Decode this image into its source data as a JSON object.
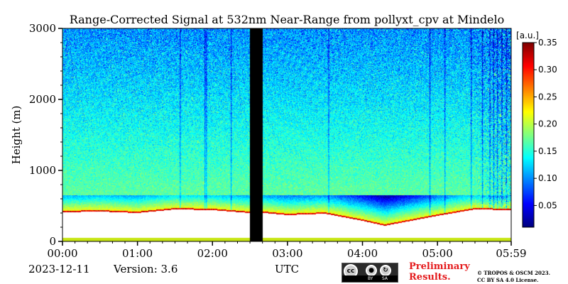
{
  "chart_data": {
    "type": "heatmap",
    "title": "Range-Corrected Signal at 532nm Near-Range from pollyxt_cpv at Mindelo",
    "xlabel": "UTC",
    "ylabel": "Height (m)",
    "x_ticks": [
      "00:00",
      "01:00",
      "02:00",
      "03:00",
      "04:00",
      "05:00",
      "05:59"
    ],
    "x_tick_hours": [
      0,
      1,
      2,
      3,
      4,
      5,
      5.983
    ],
    "xlim_hours": [
      0,
      5.983
    ],
    "y_ticks": [
      0,
      1000,
      2000,
      3000
    ],
    "ylim": [
      0,
      3000
    ],
    "colorbar": {
      "label": "[a.u.]",
      "range": [
        0.01,
        0.35
      ],
      "ticks": [
        "0.05",
        "0.10",
        "0.15",
        "0.20",
        "0.25",
        "0.30",
        "0.35"
      ],
      "tick_values": [
        0.05,
        0.1,
        0.15,
        0.2,
        0.25,
        0.3,
        0.35
      ],
      "colormap": "jet"
    },
    "data_gap_hours": [
      2.5,
      2.67
    ],
    "overlap_base_height_m": {
      "hours": [
        0,
        0.5,
        1.0,
        1.5,
        2.0,
        2.5,
        2.7,
        3.0,
        3.5,
        4.0,
        4.3,
        4.6,
        5.0,
        5.5,
        5.983
      ],
      "height_m": [
        430,
        440,
        420,
        470,
        460,
        420,
        420,
        390,
        410,
        310,
        240,
        300,
        380,
        470,
        460
      ]
    },
    "aerosol_layer_top_m": 650
  },
  "footer": {
    "date": "2023-12-11",
    "version": "Version: 3.6",
    "utc": "UTC",
    "preliminary": [
      "Preliminary",
      "Results."
    ],
    "copyright": [
      "© TROPOS & OSCM 2023.",
      "CC BY SA 4.0 License."
    ],
    "license_badge": {
      "label_by": "BY",
      "label_sa": "SA"
    }
  },
  "colors": {
    "gap": "#000000",
    "overlap_band": "#ffffff",
    "ground_line": "#c8e614"
  }
}
